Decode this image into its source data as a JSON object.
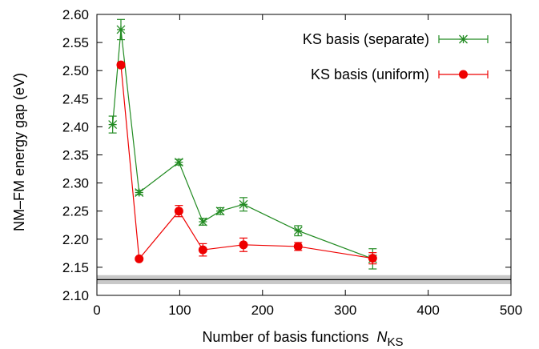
{
  "chart_data": {
    "type": "line",
    "title": "",
    "xlabel": "Number of basis functions",
    "xlabel_symbol": "N",
    "xlabel_subscript": "KS",
    "ylabel": "NM–FM energy gap (eV)",
    "xlim": [
      0,
      500
    ],
    "ylim": [
      2.1,
      2.6
    ],
    "xticks": [
      "0",
      "100",
      "200",
      "300",
      "400",
      "500"
    ],
    "yticks": [
      "2.10",
      "2.15",
      "2.20",
      "2.25",
      "2.30",
      "2.35",
      "2.40",
      "2.45",
      "2.50",
      "2.55",
      "2.60"
    ],
    "grid": false,
    "legend_position": "top-right",
    "reference_band": {
      "center": 2.128,
      "half_width": 0.008,
      "color": "#c8c8c8",
      "line_color": "#000000"
    },
    "series": [
      {
        "name": "KS basis (separate)",
        "color": "#228b22",
        "marker": "star",
        "x": [
          19,
          29,
          51,
          99,
          128,
          149,
          177,
          243,
          333
        ],
        "y": [
          2.404,
          2.573,
          2.283,
          2.337,
          2.231,
          2.25,
          2.262,
          2.215,
          2.165
        ],
        "err": [
          0.015,
          0.018,
          0.004,
          0.005,
          0.006,
          0.006,
          0.012,
          0.009,
          0.018
        ]
      },
      {
        "name": "KS basis (uniform)",
        "color": "#ee0000",
        "marker": "circle",
        "x": [
          29,
          51,
          99,
          128,
          177,
          243,
          333
        ],
        "y": [
          2.51,
          2.165,
          2.25,
          2.181,
          2.19,
          2.187,
          2.166
        ],
        "err": [
          0.004,
          0.002,
          0.01,
          0.011,
          0.012,
          0.007,
          0.01
        ]
      }
    ]
  }
}
